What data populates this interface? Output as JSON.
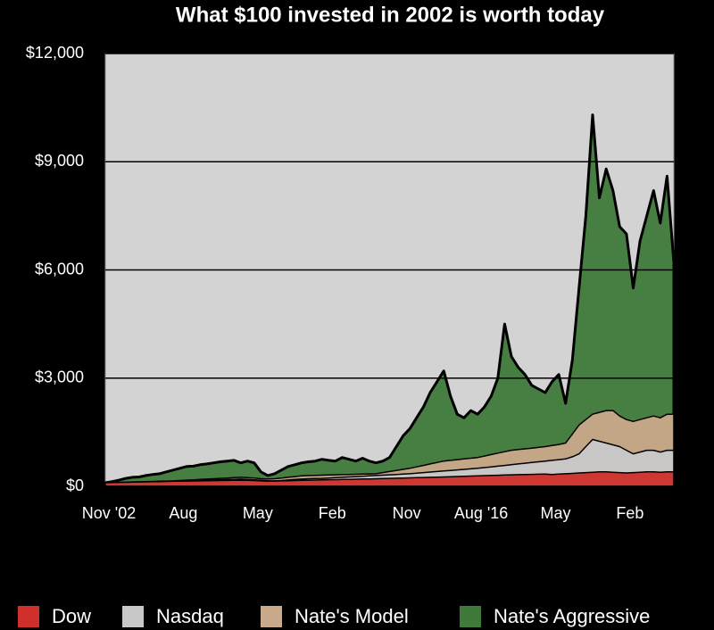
{
  "chart_data": {
    "type": "area",
    "title": "What $100 invested in 2002 is worth today",
    "categories": [
      "Nov '02",
      null,
      null,
      null,
      null,
      null,
      null,
      null,
      null,
      null,
      null,
      "Aug",
      null,
      null,
      null,
      null,
      null,
      null,
      null,
      null,
      null,
      null,
      "May",
      null,
      null,
      null,
      null,
      null,
      null,
      null,
      null,
      null,
      null,
      "Feb",
      null,
      null,
      null,
      null,
      null,
      null,
      null,
      null,
      null,
      null,
      "Nov",
      null,
      null,
      null,
      null,
      null,
      null,
      null,
      null,
      null,
      null,
      "Aug '16",
      null,
      null,
      null,
      null,
      null,
      null,
      null,
      null,
      null,
      null,
      "May",
      null,
      null,
      null,
      null,
      null,
      null,
      null,
      null,
      null,
      null,
      "Feb",
      null,
      null,
      null,
      null,
      null,
      null,
      null
    ],
    "series": [
      {
        "name": "Nate's Aggressive",
        "color": "#3f7a3a",
        "values": [
          100,
          130,
          170,
          220,
          250,
          260,
          300,
          330,
          350,
          400,
          450,
          500,
          550,
          560,
          600,
          620,
          650,
          680,
          700,
          720,
          650,
          700,
          650,
          400,
          300,
          350,
          450,
          550,
          600,
          650,
          680,
          700,
          750,
          720,
          700,
          800,
          750,
          700,
          780,
          700,
          650,
          700,
          800,
          1100,
          1400,
          1600,
          1900,
          2200,
          2600,
          2900,
          3200,
          2500,
          2000,
          1900,
          2100,
          2000,
          2200,
          2500,
          3000,
          4500,
          3600,
          3300,
          3100,
          2800,
          2700,
          2600,
          2900,
          3100,
          2300,
          3500,
          5500,
          7500,
          10300,
          8000,
          8800,
          8200,
          7200,
          7000,
          5500,
          6800,
          7500,
          8200,
          7300,
          8600,
          6200
        ]
      },
      {
        "name": "Nate's Model",
        "color": "#c9a98a",
        "values": [
          100,
          105,
          110,
          115,
          120,
          125,
          130,
          135,
          140,
          145,
          150,
          160,
          170,
          180,
          190,
          200,
          210,
          220,
          230,
          240,
          250,
          240,
          230,
          210,
          200,
          210,
          230,
          250,
          270,
          290,
          300,
          305,
          310,
          315,
          320,
          325,
          330,
          335,
          340,
          345,
          350,
          380,
          410,
          440,
          470,
          500,
          540,
          580,
          620,
          660,
          700,
          720,
          740,
          760,
          780,
          800,
          840,
          880,
          920,
          960,
          1000,
          1020,
          1040,
          1060,
          1080,
          1100,
          1130,
          1160,
          1200,
          1450,
          1700,
          1850,
          2000,
          2050,
          2100,
          2100,
          1950,
          1850,
          1800,
          1850,
          1900,
          1950,
          1900,
          2000,
          2000
        ]
      },
      {
        "name": "Nasdaq",
        "color": "#c8c8c8",
        "values": [
          100,
          103,
          106,
          109,
          112,
          115,
          118,
          121,
          124,
          127,
          130,
          138,
          146,
          154,
          162,
          170,
          176,
          182,
          188,
          194,
          200,
          190,
          180,
          165,
          150,
          150,
          160,
          175,
          190,
          200,
          210,
          215,
          220,
          230,
          240,
          250,
          260,
          270,
          280,
          290,
          300,
          310,
          320,
          330,
          340,
          350,
          365,
          380,
          395,
          410,
          425,
          440,
          455,
          470,
          485,
          500,
          520,
          540,
          560,
          580,
          600,
          620,
          640,
          660,
          680,
          700,
          720,
          740,
          760,
          820,
          900,
          1100,
          1300,
          1250,
          1200,
          1150,
          1100,
          1000,
          900,
          950,
          1000,
          1000,
          950,
          1000,
          1000
        ]
      },
      {
        "name": "Dow",
        "color": "#d0302a",
        "values": [
          100,
          104,
          108,
          112,
          116,
          120,
          124,
          128,
          132,
          136,
          140,
          143,
          146,
          149,
          152,
          155,
          158,
          161,
          164,
          167,
          170,
          165,
          160,
          150,
          140,
          145,
          150,
          155,
          160,
          165,
          170,
          174,
          178,
          182,
          186,
          190,
          194,
          198,
          202,
          206,
          210,
          215,
          220,
          225,
          230,
          235,
          240,
          245,
          250,
          255,
          260,
          266,
          272,
          278,
          284,
          290,
          296,
          302,
          308,
          314,
          320,
          324,
          328,
          332,
          336,
          340,
          330,
          340,
          350,
          360,
          370,
          380,
          390,
          400,
          400,
          390,
          380,
          370,
          380,
          390,
          400,
          400,
          390,
          400,
          400
        ]
      }
    ],
    "ylim": [
      0,
      12000
    ],
    "yticks": [
      {
        "value": 0,
        "label": "$0"
      },
      {
        "value": 3000,
        "label": "$3,000"
      },
      {
        "value": 6000,
        "label": "$6,000"
      },
      {
        "value": 9000,
        "label": "$9,000"
      },
      {
        "value": 12000,
        "label": "$12,000"
      }
    ],
    "grid": true
  }
}
